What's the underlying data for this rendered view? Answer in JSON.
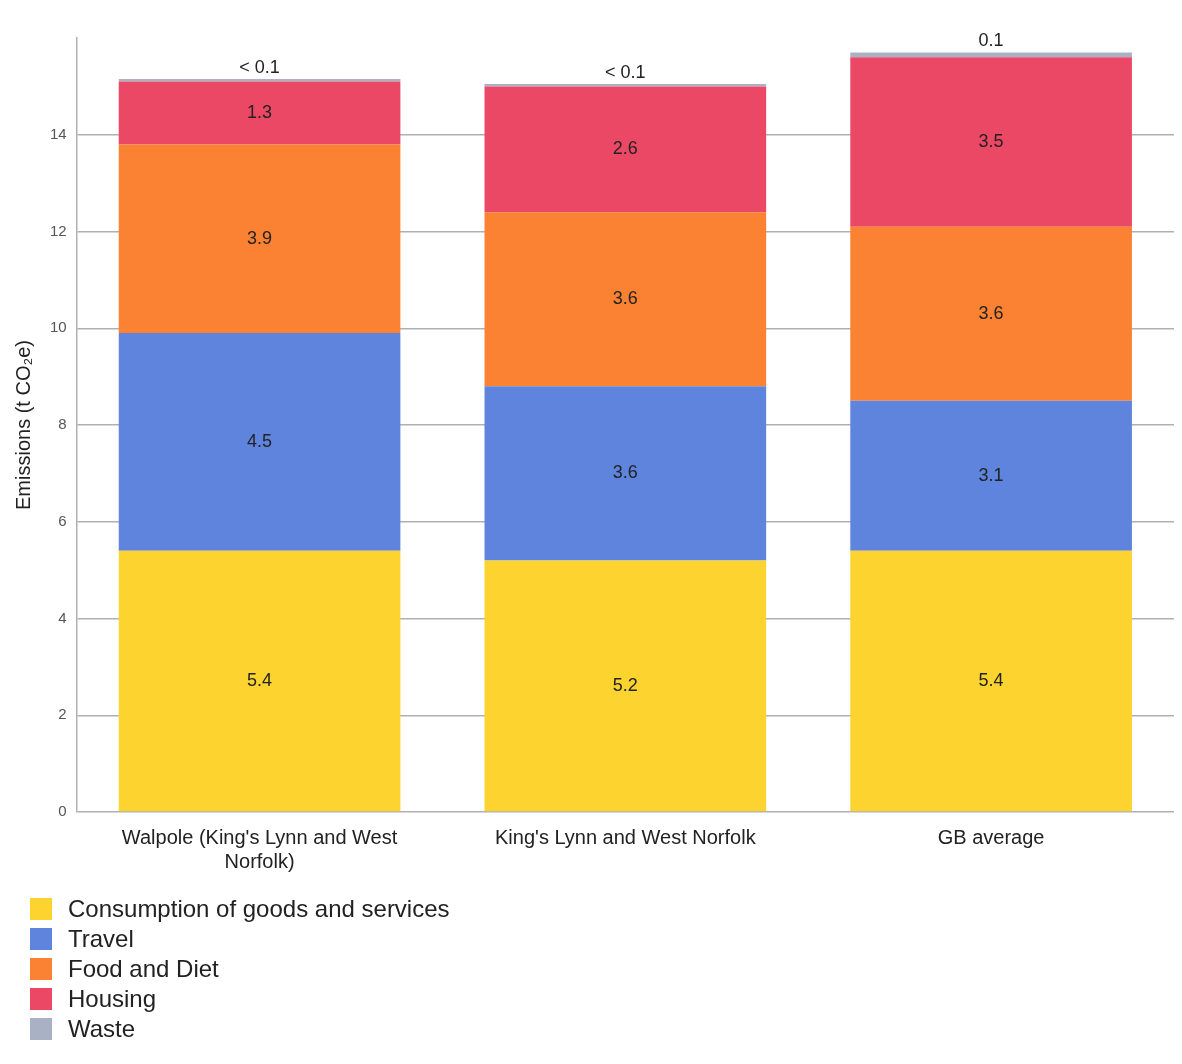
{
  "chart_data": {
    "type": "bar",
    "stacked": true,
    "ylabel": "Emissions (t CO₂e)",
    "categories": [
      "Walpole (King's Lynn and West Norfolk)",
      "King's Lynn and West Norfolk",
      "GB average"
    ],
    "series": [
      {
        "name": "Consumption of goods and services",
        "color": "#fcd32f",
        "values": [
          5.4,
          5.2,
          5.4
        ],
        "value_labels": [
          "5.4",
          "5.2",
          "5.4"
        ]
      },
      {
        "name": "Travel",
        "color": "#5f84dd",
        "values": [
          4.5,
          3.6,
          3.1
        ],
        "value_labels": [
          "4.5",
          "3.6",
          "3.1"
        ]
      },
      {
        "name": "Food and Diet",
        "color": "#fb8232",
        "values": [
          3.9,
          3.6,
          3.6
        ],
        "value_labels": [
          "3.9",
          "3.6",
          "3.6"
        ]
      },
      {
        "name": "Housing",
        "color": "#eb4866",
        "values": [
          1.3,
          2.6,
          3.5
        ],
        "value_labels": [
          "1.3",
          "2.6",
          "3.5"
        ]
      },
      {
        "name": "Waste",
        "color": "#a8b2c4",
        "values": [
          0.05,
          0.05,
          0.1
        ],
        "value_labels": [
          "< 0.1",
          "< 0.1",
          "0.1"
        ]
      }
    ],
    "ylim": [
      0,
      16
    ],
    "yticks": [
      0,
      2,
      4,
      6,
      8,
      10,
      12,
      14
    ],
    "grid": "y",
    "legend": "bottom left"
  }
}
